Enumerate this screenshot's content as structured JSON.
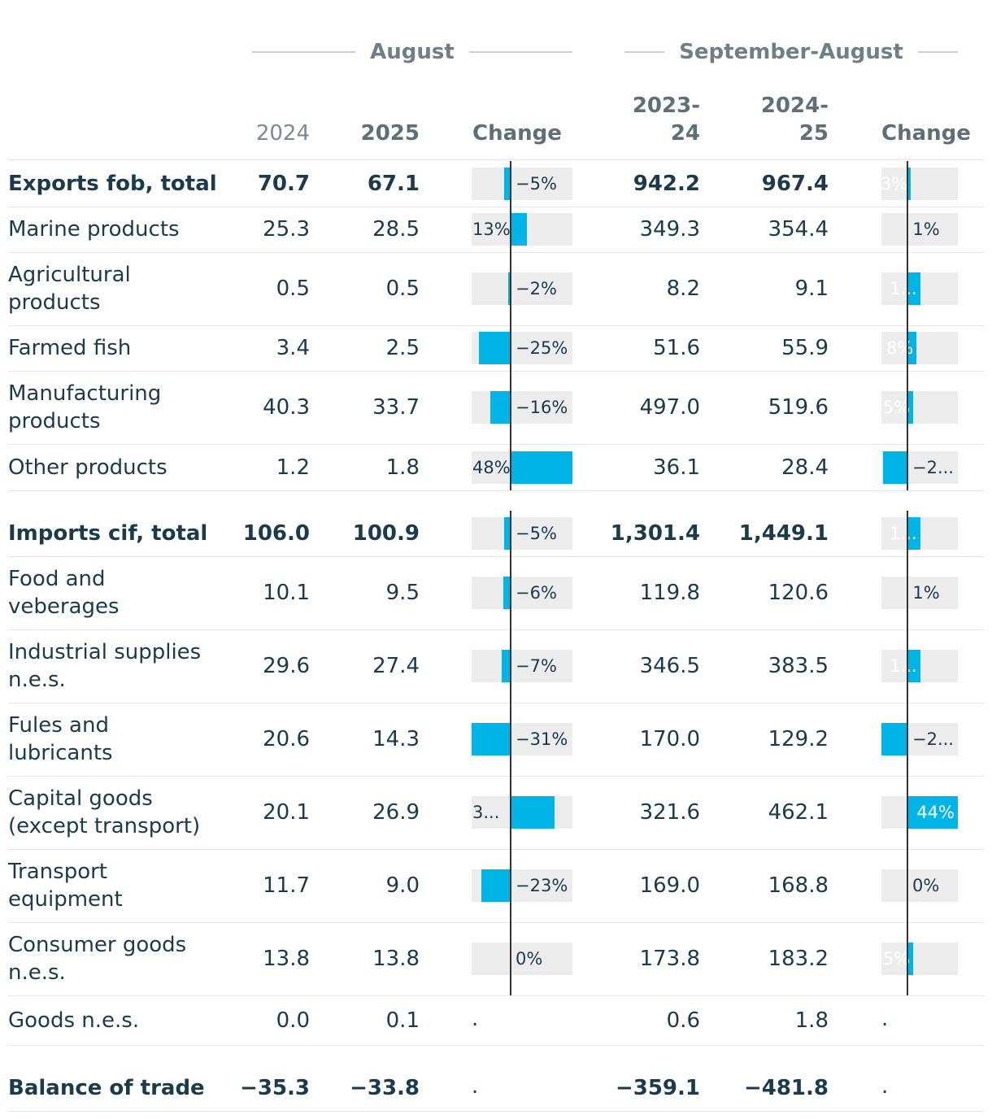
{
  "headers": {
    "august": "August",
    "sept_aug": "September-August",
    "y2024": "2024",
    "y2025": "2025",
    "change": "Change",
    "y2023_24": "2023-\n24",
    "y2024_25": "2024-\n25"
  },
  "rows": [
    {
      "label": "Exports fob, total",
      "bold": true,
      "a2024": "70.7",
      "a2025": "67.1",
      "ch1": -5,
      "ch1_label": "−5%",
      "s1": "942.2",
      "s2": "967.4",
      "ch2": 3,
      "ch2_label": "3%"
    },
    {
      "label": "Marine products",
      "a2024": "25.3",
      "a2025": "28.5",
      "ch1": 13,
      "ch1_label": "13%",
      "s1": "349.3",
      "s2": "354.4",
      "ch2": 1,
      "ch2_label": "1%"
    },
    {
      "label": "Agricultural products",
      "a2024": "0.5",
      "a2025": "0.5",
      "ch1": -2,
      "ch1_label": "−2%",
      "s1": "8.2",
      "s2": "9.1",
      "ch2": 11,
      "ch2_label": "1..."
    },
    {
      "label": "Farmed fish",
      "a2024": "3.4",
      "a2025": "2.5",
      "ch1": -25,
      "ch1_label": "−25%",
      "s1": "51.6",
      "s2": "55.9",
      "ch2": 8,
      "ch2_label": "8%"
    },
    {
      "label": "Manufacturing products",
      "a2024": "40.3",
      "a2025": "33.7",
      "ch1": -16,
      "ch1_label": "−16%",
      "s1": "497.0",
      "s2": "519.6",
      "ch2": 5,
      "ch2_label": "5%"
    },
    {
      "label": "Other products",
      "a2024": "1.2",
      "a2025": "1.8",
      "ch1": 48,
      "ch1_label": "48%",
      "s1": "36.1",
      "s2": "28.4",
      "ch2": -21,
      "ch2_label": "−2..."
    },
    {
      "label": "Imports cif, total",
      "bold": true,
      "a2024": "106.0",
      "a2025": "100.9",
      "ch1": -5,
      "ch1_label": "−5%",
      "s1": "1,301.4",
      "s2": "1,449.1",
      "ch2": 11,
      "ch2_label": "1..."
    },
    {
      "label": "Food and veberages",
      "a2024": "10.1",
      "a2025": "9.5",
      "ch1": -6,
      "ch1_label": "−6%",
      "s1": "119.8",
      "s2": "120.6",
      "ch2": 1,
      "ch2_label": "1%"
    },
    {
      "label": "Industrial supplies n.e.s.",
      "a2024": "29.6",
      "a2025": "27.4",
      "ch1": -7,
      "ch1_label": "−7%",
      "s1": "346.5",
      "s2": "383.5",
      "ch2": 11,
      "ch2_label": "1..."
    },
    {
      "label": "Fules and lubricants",
      "a2024": "20.6",
      "a2025": "14.3",
      "ch1": -31,
      "ch1_label": "−31%",
      "s1": "170.0",
      "s2": "129.2",
      "ch2": -24,
      "ch2_label": "−2..."
    },
    {
      "label": "Capital goods (except transport)",
      "a2024": "20.1",
      "a2025": "26.9",
      "ch1": 34,
      "ch1_label": "3...",
      "s1": "321.6",
      "s2": "462.1",
      "ch2": 44,
      "ch2_label": "44%"
    },
    {
      "label": "Transport equipment",
      "a2024": "11.7",
      "a2025": "9.0",
      "ch1": -23,
      "ch1_label": "−23%",
      "s1": "169.0",
      "s2": "168.8",
      "ch2": 0,
      "ch2_label": "0%"
    },
    {
      "label": "Consumer goods n.e.s.",
      "a2024": "13.8",
      "a2025": "13.8",
      "ch1": 0,
      "ch1_label": "0%",
      "s1": "173.8",
      "s2": "183.2",
      "ch2": 5,
      "ch2_label": "5%"
    },
    {
      "label": "Goods n.e.s.",
      "a2024": "0.0",
      "a2025": "0.1",
      "ch1": null,
      "ch1_label": ".",
      "s1": "0.6",
      "s2": "1.8",
      "ch2": null,
      "ch2_label": "."
    },
    {
      "label": "Balance of trade",
      "bold": true,
      "a2024": "−35.3",
      "a2025": "−33.8",
      "ch1": null,
      "ch1_label": ".",
      "s1": "−359.1",
      "s2": "−481.8",
      "ch2": null,
      "ch2_label": "."
    }
  ],
  "chart_data": {
    "type": "table",
    "title": "",
    "groups": [
      "August",
      "September-August"
    ],
    "columns": [
      "2024",
      "2025",
      "Change",
      "2023-24",
      "2024-25",
      "Change"
    ],
    "change_unit": "%",
    "series": [
      {
        "name": "August change (%)",
        "values": [
          -5,
          13,
          -2,
          -25,
          -16,
          48,
          -5,
          -6,
          -7,
          -31,
          34,
          -23,
          0,
          null,
          null
        ]
      },
      {
        "name": "September-August change (%)",
        "values": [
          3,
          1,
          11,
          8,
          5,
          -21,
          11,
          1,
          11,
          -24,
          44,
          0,
          5,
          null,
          null
        ]
      }
    ],
    "categories": [
      "Exports fob, total",
      "Marine products",
      "Agricultural products",
      "Farmed fish",
      "Manufacturing products",
      "Other products",
      "Imports cif, total",
      "Food and veberages",
      "Industrial supplies n.e.s.",
      "Fules and lubricants",
      "Capital goods (except transport)",
      "Transport equipment",
      "Consumer goods n.e.s.",
      "Goods n.e.s.",
      "Balance of trade"
    ]
  },
  "colors": {
    "bar": "#00b4e8",
    "bar_bg": "#ececec",
    "axis": "#333333"
  }
}
